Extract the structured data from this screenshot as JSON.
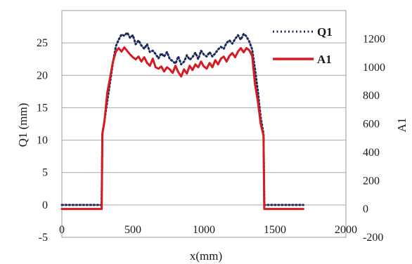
{
  "chart_data": {
    "type": "line",
    "xlabel": "x(mm)",
    "ylabel": "Q1 (mm)",
    "y2label": "A1",
    "xlim": [
      0,
      2000
    ],
    "ylim": [
      -5,
      30
    ],
    "y2lim": [
      -200,
      1400
    ],
    "xticks": [
      "0",
      "500",
      "1000",
      "1500",
      "2000"
    ],
    "yticks": [
      "-5",
      "0",
      "5",
      "10",
      "15",
      "20",
      "25"
    ],
    "y2ticks": [
      "-200",
      "0",
      "200",
      "400",
      "600",
      "800",
      "1000",
      "1200"
    ],
    "grid": "horizontal",
    "legend": "top-right",
    "series": [
      {
        "name": "Q1",
        "axis": "left",
        "style": "dotted",
        "color": "#1f2a5c",
        "points": [
          [
            0,
            0
          ],
          [
            280,
            0
          ],
          [
            285,
            11
          ],
          [
            300,
            13
          ],
          [
            320,
            16
          ],
          [
            340,
            19
          ],
          [
            360,
            22
          ],
          [
            380,
            24.5
          ],
          [
            400,
            25.5
          ],
          [
            420,
            26.3
          ],
          [
            440,
            26.1
          ],
          [
            460,
            26.6
          ],
          [
            480,
            25.8
          ],
          [
            500,
            26.2
          ],
          [
            520,
            24.8
          ],
          [
            540,
            25.4
          ],
          [
            560,
            24.6
          ],
          [
            580,
            24.1
          ],
          [
            600,
            24.8
          ],
          [
            620,
            23.6
          ],
          [
            640,
            23.8
          ],
          [
            660,
            23.3
          ],
          [
            680,
            22.6
          ],
          [
            700,
            23.4
          ],
          [
            720,
            22.9
          ],
          [
            740,
            23.6
          ],
          [
            760,
            22.5
          ],
          [
            780,
            22.2
          ],
          [
            800,
            21.8
          ],
          [
            820,
            22.9
          ],
          [
            840,
            21.7
          ],
          [
            860,
            22.1
          ],
          [
            880,
            23.1
          ],
          [
            900,
            22.4
          ],
          [
            920,
            22.8
          ],
          [
            940,
            23.5
          ],
          [
            960,
            22.5
          ],
          [
            980,
            23.8
          ],
          [
            1000,
            23.2
          ],
          [
            1020,
            22.9
          ],
          [
            1040,
            23.6
          ],
          [
            1060,
            22.9
          ],
          [
            1080,
            23.4
          ],
          [
            1100,
            24.0
          ],
          [
            1120,
            24.4
          ],
          [
            1140,
            24.1
          ],
          [
            1160,
            25.0
          ],
          [
            1180,
            25.4
          ],
          [
            1200,
            24.9
          ],
          [
            1220,
            25.6
          ],
          [
            1240,
            26.2
          ],
          [
            1260,
            25.5
          ],
          [
            1280,
            26.4
          ],
          [
            1300,
            26.0
          ],
          [
            1320,
            25.2
          ],
          [
            1340,
            24.0
          ],
          [
            1360,
            21.0
          ],
          [
            1380,
            17.5
          ],
          [
            1400,
            13.5
          ],
          [
            1420,
            11.0
          ],
          [
            1425,
            0
          ],
          [
            1700,
            0
          ]
        ]
      },
      {
        "name": "A1",
        "axis": "right",
        "style": "solid",
        "color": "#d71920",
        "points": [
          [
            0,
            0
          ],
          [
            280,
            0
          ],
          [
            285,
            530
          ],
          [
            300,
            620
          ],
          [
            320,
            820
          ],
          [
            340,
            930
          ],
          [
            360,
            1040
          ],
          [
            380,
            1110
          ],
          [
            400,
            1135
          ],
          [
            420,
            1110
          ],
          [
            440,
            1140
          ],
          [
            460,
            1115
          ],
          [
            480,
            1090
          ],
          [
            500,
            1070
          ],
          [
            520,
            1055
          ],
          [
            540,
            1075
          ],
          [
            560,
            1040
          ],
          [
            580,
            1070
          ],
          [
            600,
            1030
          ],
          [
            620,
            1010
          ],
          [
            640,
            1060
          ],
          [
            660,
            1000
          ],
          [
            680,
            990
          ],
          [
            700,
            1005
          ],
          [
            720,
            970
          ],
          [
            740,
            1000
          ],
          [
            760,
            985
          ],
          [
            780,
            960
          ],
          [
            800,
            1010
          ],
          [
            820,
            965
          ],
          [
            840,
            935
          ],
          [
            860,
            985
          ],
          [
            880,
            955
          ],
          [
            900,
            1010
          ],
          [
            920,
            980
          ],
          [
            940,
            1020
          ],
          [
            960,
            1000
          ],
          [
            980,
            1040
          ],
          [
            1000,
            1005
          ],
          [
            1020,
            990
          ],
          [
            1040,
            1030
          ],
          [
            1060,
            1000
          ],
          [
            1080,
            1050
          ],
          [
            1100,
            1020
          ],
          [
            1120,
            1060
          ],
          [
            1140,
            1075
          ],
          [
            1160,
            1040
          ],
          [
            1180,
            1080
          ],
          [
            1200,
            1100
          ],
          [
            1220,
            1070
          ],
          [
            1240,
            1110
          ],
          [
            1260,
            1135
          ],
          [
            1280,
            1105
          ],
          [
            1300,
            1135
          ],
          [
            1320,
            1120
          ],
          [
            1340,
            1080
          ],
          [
            1360,
            880
          ],
          [
            1380,
            760
          ],
          [
            1400,
            600
          ],
          [
            1420,
            520
          ],
          [
            1425,
            0
          ],
          [
            1700,
            0
          ]
        ]
      }
    ]
  }
}
